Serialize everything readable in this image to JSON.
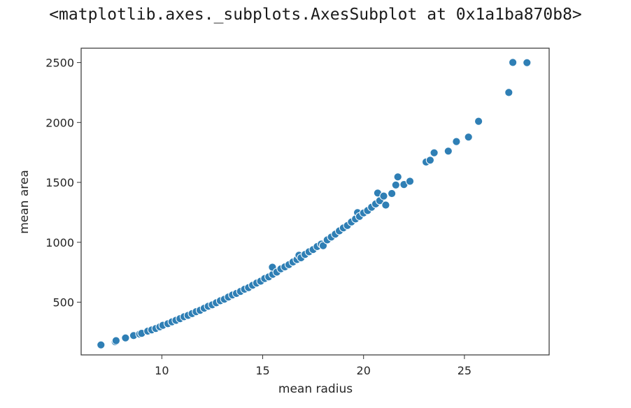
{
  "output_repr": "<matplotlib.axes._subplots.AxesSubplot at 0x1a1ba870b8>",
  "colors": {
    "marker": "#2f7fb5",
    "marker_edge": "#ffffff",
    "axes_edge": "#333333",
    "text": "#262626"
  },
  "chart_data": {
    "type": "scatter",
    "xlabel": "mean radius",
    "ylabel": "mean area",
    "xlim": [
      6.0,
      29.2
    ],
    "ylim": [
      60,
      2620
    ],
    "xticks": [
      10,
      15,
      20,
      25
    ],
    "yticks": [
      500,
      1000,
      1500,
      2000,
      2500
    ],
    "grid": false,
    "legend": "none",
    "points": [
      [
        6.98,
        143.5
      ],
      [
        7.69,
        170.4
      ],
      [
        7.73,
        178.8
      ],
      [
        8.2,
        201.9
      ],
      [
        8.6,
        221.8
      ],
      [
        8.9,
        234.3
      ],
      [
        9.0,
        240.1
      ],
      [
        9.3,
        258.5
      ],
      [
        9.5,
        268.8
      ],
      [
        9.7,
        280.5
      ],
      [
        9.9,
        294.5
      ],
      [
        10.05,
        307.3
      ],
      [
        10.3,
        320.6
      ],
      [
        10.5,
        336.1
      ],
      [
        10.7,
        348.8
      ],
      [
        10.9,
        362.7
      ],
      [
        11.1,
        378.2
      ],
      [
        11.3,
        389.4
      ],
      [
        11.5,
        404.9
      ],
      [
        11.7,
        421.0
      ],
      [
        11.9,
        432.8
      ],
      [
        12.1,
        449.3
      ],
      [
        12.3,
        466.1
      ],
      [
        12.5,
        478.4
      ],
      [
        12.7,
        495.0
      ],
      [
        12.9,
        512.2
      ],
      [
        13.1,
        524.8
      ],
      [
        13.3,
        543.4
      ],
      [
        13.5,
        560.1
      ],
      [
        13.7,
        573.2
      ],
      [
        13.9,
        590.0
      ],
      [
        14.1,
        607.9
      ],
      [
        14.3,
        621.8
      ],
      [
        14.5,
        641.2
      ],
      [
        14.7,
        660.2
      ],
      [
        14.9,
        675.3
      ],
      [
        15.1,
        697.7
      ],
      [
        15.3,
        711.3
      ],
      [
        15.5,
        732.4
      ],
      [
        15.48,
        792.0
      ],
      [
        15.7,
        751.0
      ],
      [
        15.9,
        778.2
      ],
      [
        16.1,
        794.5
      ],
      [
        16.3,
        813.4
      ],
      [
        16.5,
        835.7
      ],
      [
        16.7,
        856.1
      ],
      [
        16.8,
        892.0
      ],
      [
        16.9,
        870.4
      ],
      [
        17.1,
        899.3
      ],
      [
        17.3,
        920.6
      ],
      [
        17.5,
        939.3
      ],
      [
        17.7,
        964.3
      ],
      [
        17.9,
        985.4
      ],
      [
        18.0,
        972.0
      ],
      [
        18.2,
        1020.0
      ],
      [
        18.4,
        1044.0
      ],
      [
        18.6,
        1068.0
      ],
      [
        18.8,
        1095.0
      ],
      [
        19.0,
        1120.0
      ],
      [
        19.2,
        1140.0
      ],
      [
        19.4,
        1170.0
      ],
      [
        19.6,
        1195.0
      ],
      [
        19.7,
        1248.0
      ],
      [
        19.8,
        1216.0
      ],
      [
        20.0,
        1245.0
      ],
      [
        20.2,
        1265.0
      ],
      [
        20.4,
        1293.0
      ],
      [
        20.6,
        1320.0
      ],
      [
        20.7,
        1411.0
      ],
      [
        20.8,
        1347.0
      ],
      [
        21.0,
        1386.0
      ],
      [
        21.1,
        1311.0
      ],
      [
        21.4,
        1407.0
      ],
      [
        21.6,
        1478.0
      ],
      [
        21.7,
        1546.0
      ],
      [
        22.0,
        1482.0
      ],
      [
        22.3,
        1509.0
      ],
      [
        23.1,
        1670.0
      ],
      [
        23.3,
        1685.0
      ],
      [
        23.5,
        1747.0
      ],
      [
        24.2,
        1761.0
      ],
      [
        24.6,
        1841.0
      ],
      [
        25.2,
        1878.0
      ],
      [
        25.7,
        2010.0
      ],
      [
        27.2,
        2250.0
      ],
      [
        27.4,
        2501.0
      ],
      [
        28.1,
        2499.0
      ]
    ]
  }
}
